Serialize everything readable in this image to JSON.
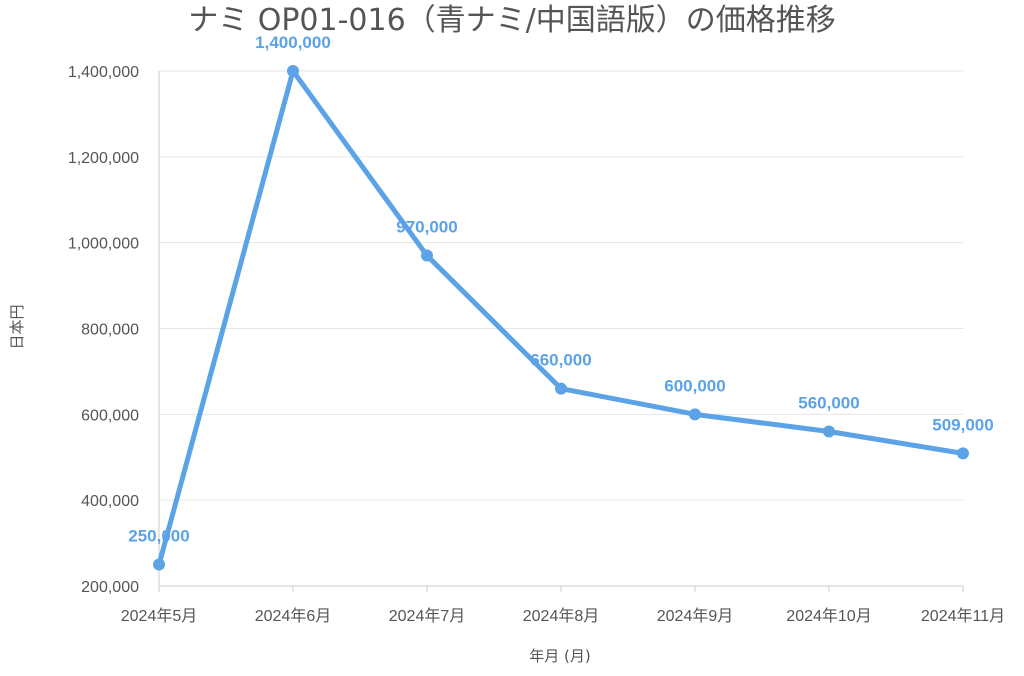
{
  "chart_data": {
    "type": "line",
    "title": "ナミ OP01-016（青ナミ/中国語版）の価格推移",
    "xlabel": "年月 (月)",
    "ylabel": "日本円",
    "categories": [
      "2024年5月",
      "2024年6月",
      "2024年7月",
      "2024年8月",
      "2024年9月",
      "2024年10月",
      "2024年11月"
    ],
    "series": [
      {
        "values": [
          250000,
          1400000,
          970000,
          660000,
          600000,
          560000,
          509000
        ],
        "data_labels": [
          "250,000",
          "1,400,000",
          "970,000",
          "660,000",
          "600,000",
          "560,000",
          "509,000"
        ]
      }
    ],
    "ylim": [
      200000,
      1400000
    ],
    "yticks": [
      200000,
      400000,
      600000,
      800000,
      1000000,
      1200000,
      1400000
    ],
    "ytick_labels": [
      "200,000",
      "400,000",
      "600,000",
      "800,000",
      "1,000,000",
      "1,200,000",
      "1,400,000"
    ],
    "grid": true,
    "legend": "none",
    "colors": {
      "line": "#5ba3e6",
      "label": "#5ba3e6",
      "grid": "#e6e6e6",
      "axis": "#cccccc"
    }
  }
}
